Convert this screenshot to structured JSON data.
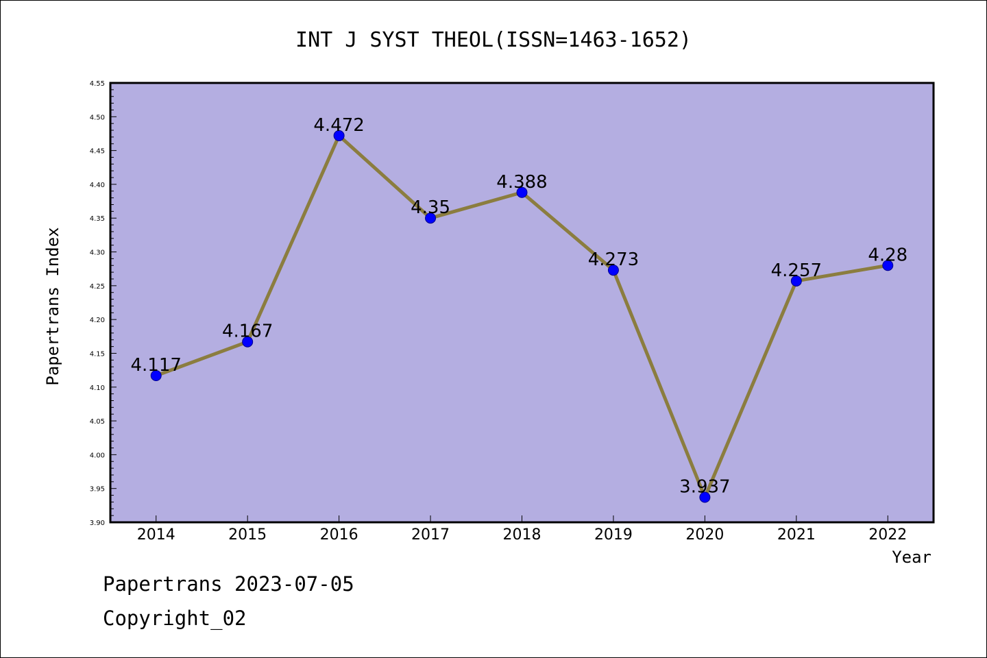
{
  "footer": {
    "line1": "Papertrans 2023-07-05",
    "line2": "Copyright_02"
  },
  "chart_data": {
    "type": "line",
    "title": "INT J SYST THEOL(ISSN=1463-1652)",
    "xlabel": "Year",
    "ylabel": "Papertrans Index",
    "categories": [
      "2014",
      "2015",
      "2016",
      "2017",
      "2018",
      "2019",
      "2020",
      "2021",
      "2022"
    ],
    "series": [
      {
        "values": [
          4.117,
          4.167,
          4.472,
          4.35,
          4.388,
          4.273,
          3.937,
          4.257,
          4.28
        ],
        "data_labels": [
          "4.117",
          "4.167",
          "4.472",
          "4.35",
          "4.388",
          "4.273",
          "3.937",
          "4.257",
          "4.28"
        ]
      }
    ],
    "ylim": [
      3.9,
      4.55
    ],
    "yticks": [
      "3.90",
      "3.95",
      "4.00",
      "4.05",
      "4.10",
      "4.15",
      "4.20",
      "4.25",
      "4.30",
      "4.35",
      "4.40",
      "4.45",
      "4.50",
      "4.55"
    ],
    "grid": false,
    "legend": "none",
    "colors": {
      "plot_background": "#b4aee1",
      "line": "#8b7d3f",
      "marker": "#0000ff"
    }
  }
}
